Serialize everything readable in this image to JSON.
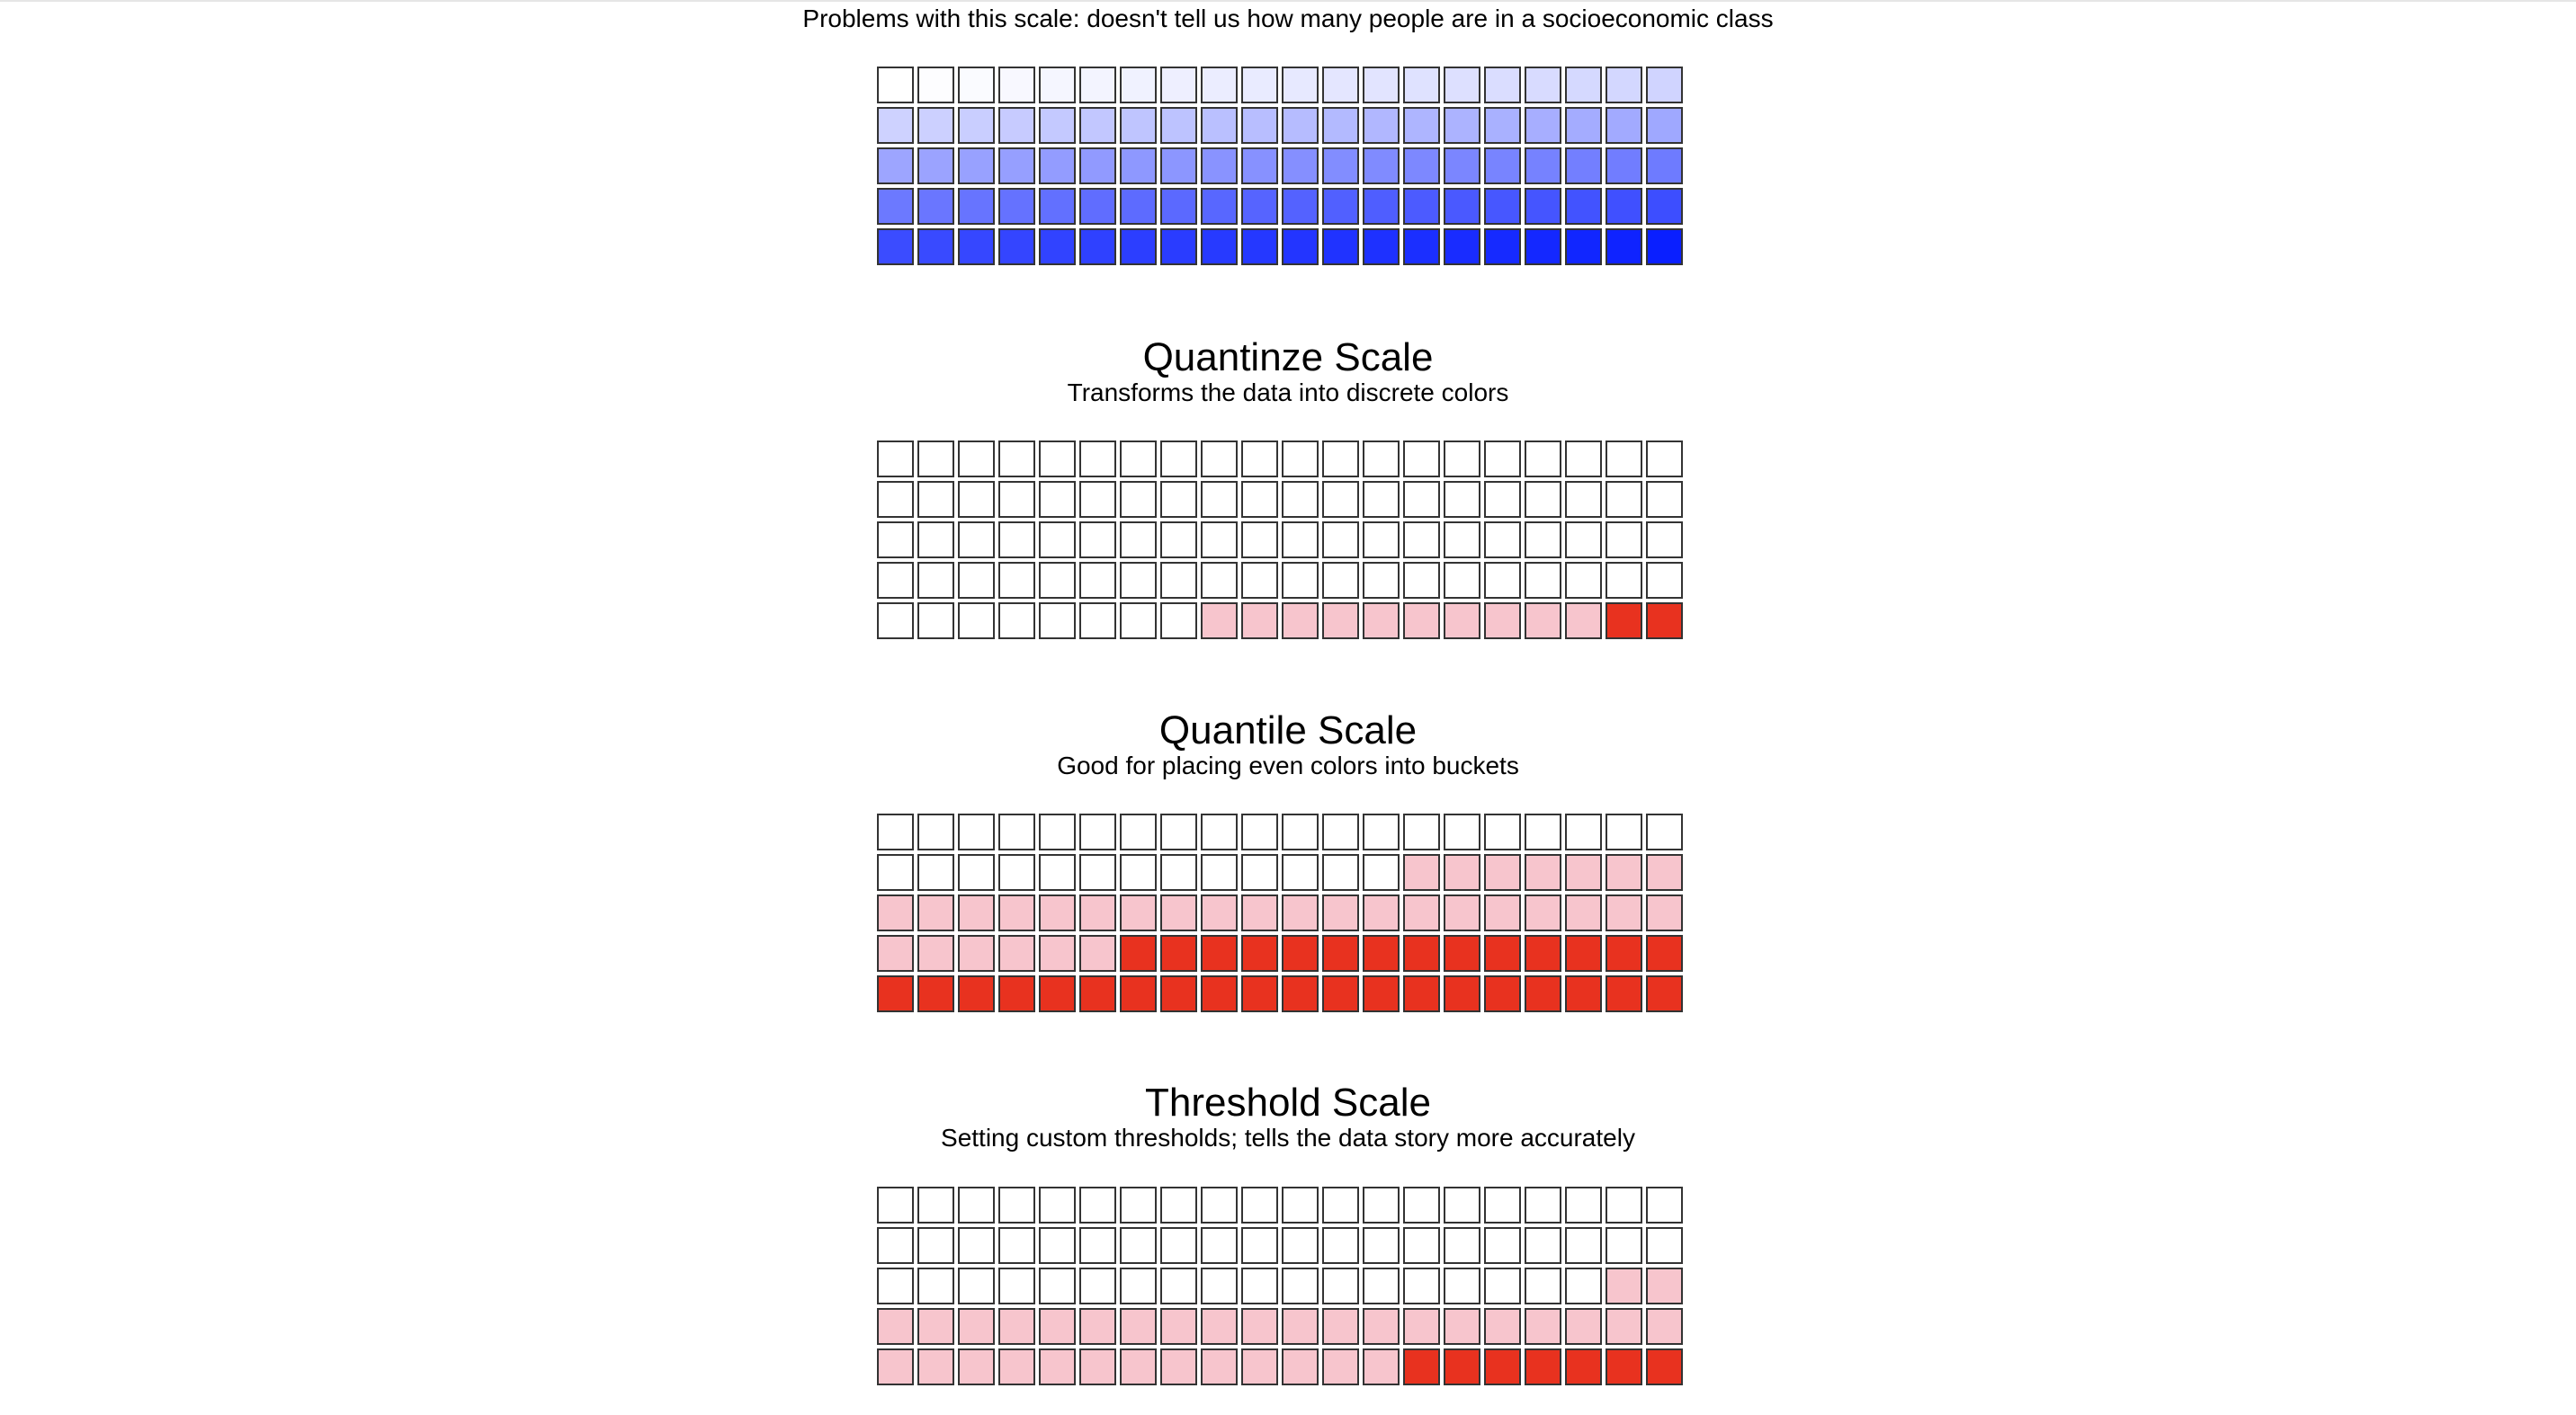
{
  "chart_data": [
    {
      "type": "heatmap",
      "name": "linear-scale",
      "title": "",
      "subtitle": "Problems with this scale: doesn't tell us how many people are in a socioeconomic class",
      "rows": 5,
      "columns": 20,
      "value_min": 0,
      "value_max": 100,
      "colors": {
        "low": "#ffffff",
        "high": "#0a1fff"
      },
      "values": [
        0,
        1,
        2,
        3,
        4,
        5,
        6,
        7,
        8,
        9,
        10,
        11,
        12,
        13,
        14,
        15,
        16,
        17,
        18,
        19,
        20,
        21,
        22,
        23,
        24,
        25,
        26,
        27,
        28,
        29,
        30,
        31,
        32,
        33,
        34,
        35,
        36,
        37,
        38,
        39,
        40,
        41,
        42,
        43,
        44,
        45,
        46,
        47,
        48,
        49,
        50,
        51,
        52,
        53,
        54,
        55,
        56,
        57,
        58,
        59,
        60,
        61,
        62,
        63,
        64,
        65,
        66,
        67,
        68,
        69,
        70,
        71,
        72,
        73,
        74,
        75,
        76,
        77,
        78,
        79,
        80,
        81,
        82,
        83,
        84,
        85,
        86,
        87,
        88,
        89,
        90,
        91,
        92,
        93,
        94,
        95,
        96,
        97,
        98,
        100
      ]
    },
    {
      "type": "heatmap",
      "name": "quantize-scale",
      "title": "Quantinze Scale",
      "subtitle": "Transforms the data into discrete colors",
      "rows": 5,
      "columns": 20,
      "palette": [
        "#ffffff",
        "#f7c5cd",
        "#e8321f"
      ],
      "cells": [
        0,
        0,
        0,
        0,
        0,
        0,
        0,
        0,
        0,
        0,
        0,
        0,
        0,
        0,
        0,
        0,
        0,
        0,
        0,
        0,
        0,
        0,
        0,
        0,
        0,
        0,
        0,
        0,
        0,
        0,
        0,
        0,
        0,
        0,
        0,
        0,
        0,
        0,
        0,
        0,
        0,
        0,
        0,
        0,
        0,
        0,
        0,
        0,
        0,
        0,
        0,
        0,
        0,
        0,
        0,
        0,
        0,
        0,
        0,
        0,
        0,
        0,
        0,
        0,
        0,
        0,
        0,
        0,
        0,
        0,
        0,
        0,
        0,
        0,
        0,
        0,
        0,
        0,
        0,
        0,
        0,
        0,
        0,
        0,
        0,
        0,
        0,
        0,
        1,
        1,
        1,
        1,
        1,
        1,
        1,
        1,
        1,
        1,
        2,
        2
      ]
    },
    {
      "type": "heatmap",
      "name": "quantile-scale",
      "title": "Quantile Scale",
      "subtitle": "Good for placing even colors into buckets",
      "rows": 5,
      "columns": 20,
      "palette": [
        "#ffffff",
        "#f7c5cd",
        "#e8321f"
      ],
      "cells": [
        0,
        0,
        0,
        0,
        0,
        0,
        0,
        0,
        0,
        0,
        0,
        0,
        0,
        0,
        0,
        0,
        0,
        0,
        0,
        0,
        0,
        0,
        0,
        0,
        0,
        0,
        0,
        0,
        0,
        0,
        0,
        0,
        0,
        1,
        1,
        1,
        1,
        1,
        1,
        1,
        1,
        1,
        1,
        1,
        1,
        1,
        1,
        1,
        1,
        1,
        1,
        1,
        1,
        1,
        1,
        1,
        1,
        1,
        1,
        1,
        1,
        1,
        1,
        1,
        1,
        1,
        2,
        2,
        2,
        2,
        2,
        2,
        2,
        2,
        2,
        2,
        2,
        2,
        2,
        2,
        2,
        2,
        2,
        2,
        2,
        2,
        2,
        2,
        2,
        2,
        2,
        2,
        2,
        2,
        2,
        2,
        2,
        2,
        2,
        2
      ]
    },
    {
      "type": "heatmap",
      "name": "threshold-scale",
      "title": "Threshold Scale",
      "subtitle": "Setting custom thresholds; tells the data story more accurately",
      "rows": 5,
      "columns": 20,
      "palette": [
        "#ffffff",
        "#f7c5cd",
        "#e8321f"
      ],
      "cells": [
        0,
        0,
        0,
        0,
        0,
        0,
        0,
        0,
        0,
        0,
        0,
        0,
        0,
        0,
        0,
        0,
        0,
        0,
        0,
        0,
        0,
        0,
        0,
        0,
        0,
        0,
        0,
        0,
        0,
        0,
        0,
        0,
        0,
        0,
        0,
        0,
        0,
        0,
        0,
        0,
        0,
        0,
        0,
        0,
        0,
        0,
        0,
        0,
        0,
        0,
        0,
        0,
        0,
        0,
        0,
        0,
        0,
        0,
        1,
        1,
        1,
        1,
        1,
        1,
        1,
        1,
        1,
        1,
        1,
        1,
        1,
        1,
        1,
        1,
        1,
        1,
        1,
        1,
        1,
        1,
        1,
        1,
        1,
        1,
        1,
        1,
        1,
        1,
        1,
        1,
        1,
        1,
        1,
        2,
        2,
        2,
        2,
        2,
        2,
        2
      ]
    }
  ]
}
